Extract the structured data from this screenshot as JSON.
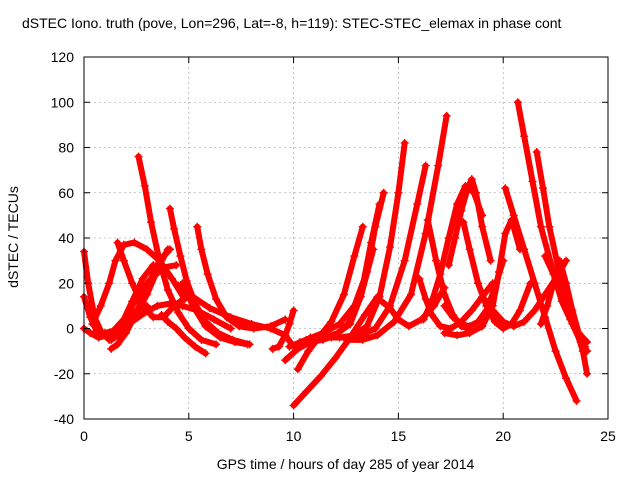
{
  "chart_data": {
    "type": "scatter",
    "title": "dSTEC Iono. truth (pove, Lon=296, Lat=-8, h=119): STEC-STEC_elemax in phase cont",
    "xlabel": "GPS time / hours of day 285 of year 2014",
    "ylabel": "dSTEC  / TECUs",
    "xlim": [
      0,
      25
    ],
    "ylim": [
      -40,
      120
    ],
    "xticks": [
      "0",
      "5",
      "10",
      "15",
      "20",
      "25"
    ],
    "yticks": [
      "-40",
      "-20",
      "0",
      "20",
      "40",
      "60",
      "80",
      "100",
      "120"
    ],
    "grid": true,
    "marker": "+",
    "color": "#ff0000",
    "series": [
      {
        "x": [
          0.0,
          0.2,
          0.5,
          0.9,
          1.3,
          1.8,
          2.4,
          3.0,
          3.6,
          4.0
        ],
        "y": [
          34,
          20,
          5,
          -3,
          -5,
          -2,
          5,
          15,
          28,
          35
        ]
      },
      {
        "x": [
          0.0,
          0.3,
          0.6,
          1.0,
          1.4,
          1.8,
          2.3,
          2.8,
          3.3
        ],
        "y": [
          14,
          5,
          -1,
          -3,
          -3,
          2,
          12,
          22,
          28
        ]
      },
      {
        "x": [
          0.0,
          0.3,
          0.7,
          1.1,
          1.5,
          2.0,
          2.5,
          3.0
        ],
        "y": [
          0,
          -2,
          -4,
          -3,
          -1,
          3,
          8,
          10
        ]
      },
      {
        "x": [
          0.6,
          1.0,
          1.4,
          1.9,
          2.5,
          3.1,
          3.8,
          4.4
        ],
        "y": [
          -3,
          -2,
          -1,
          4,
          13,
          21,
          27,
          28
        ]
      },
      {
        "x": [
          0.4,
          0.8,
          1.2,
          1.5,
          1.9,
          2.4,
          3.0,
          3.6,
          4.2,
          4.8
        ],
        "y": [
          2,
          10,
          20,
          30,
          37,
          38,
          35,
          30,
          22,
          13
        ]
      },
      {
        "x": [
          1.3,
          1.6,
          2.0,
          2.5,
          3.0,
          3.6,
          4.1
        ],
        "y": [
          -9,
          -7,
          -2,
          7,
          18,
          30,
          35
        ]
      },
      {
        "x": [
          1.6,
          1.9,
          2.3,
          2.8,
          3.3,
          3.8,
          4.3,
          4.9
        ],
        "y": [
          38,
          30,
          20,
          10,
          5,
          5,
          10,
          14
        ]
      },
      {
        "x": [
          1.2,
          1.7,
          2.3,
          2.9,
          3.5,
          4.1,
          4.7,
          5.4,
          6.2,
          7.0
        ],
        "y": [
          -5,
          -1,
          3,
          7,
          10,
          11,
          10,
          8,
          4,
          0
        ]
      },
      {
        "x": [
          2.6,
          2.9,
          3.2,
          3.6,
          4.0,
          4.5,
          5.0,
          5.6,
          6.3
        ],
        "y": [
          76,
          63,
          47,
          30,
          17,
          7,
          0,
          -5,
          -7
        ]
      },
      {
        "x": [
          4.1,
          4.3,
          4.6,
          4.9,
          5.3,
          5.8,
          6.4,
          7.1,
          7.9
        ],
        "y": [
          53,
          44,
          32,
          21,
          11,
          3,
          -2,
          -5,
          -7
        ]
      },
      {
        "x": [
          3.7,
          4.0,
          4.4,
          4.8,
          5.3,
          5.8
        ],
        "y": [
          6,
          3,
          0,
          -4,
          -8,
          -11
        ]
      },
      {
        "x": [
          4.7,
          5.2,
          5.8,
          6.5,
          7.2,
          7.8
        ],
        "y": [
          20,
          10,
          1,
          -4,
          -6,
          -7
        ]
      },
      {
        "x": [
          5.4,
          5.6,
          5.9,
          6.3,
          6.8,
          7.4,
          8.1,
          8.9,
          9.6
        ],
        "y": [
          45,
          35,
          24,
          13,
          5,
          1,
          0,
          1,
          4
        ]
      },
      {
        "x": [
          4.5,
          5.2,
          6.0,
          7.0,
          8.0,
          8.9,
          9.6,
          10.0
        ],
        "y": [
          19,
          14,
          9,
          5,
          2,
          0,
          -3,
          -8
        ]
      },
      {
        "x": [
          9.0,
          9.3,
          9.6,
          9.8,
          10.0
        ],
        "y": [
          -9,
          -8,
          -3,
          2,
          8
        ]
      },
      {
        "x": [
          10.0,
          10.6,
          11.3,
          12.0,
          12.7,
          13.4,
          14.0
        ],
        "y": [
          -34,
          -28,
          -21,
          -13,
          -4,
          6,
          14
        ]
      },
      {
        "x": [
          10.2,
          10.7,
          11.2,
          11.8,
          12.4,
          12.9,
          13.3
        ],
        "y": [
          -18,
          -10,
          -4,
          3,
          15,
          32,
          45
        ]
      },
      {
        "x": [
          9.6,
          10.2,
          10.8,
          11.4,
          12.0,
          12.6,
          13.2,
          13.8
        ],
        "y": [
          -14,
          -9,
          -6,
          -5,
          -3,
          2,
          14,
          35
        ]
      },
      {
        "x": [
          10.3,
          10.9,
          11.5,
          12.1,
          12.7,
          13.2,
          13.7,
          14.1
        ],
        "y": [
          -6,
          -5,
          -4,
          -2,
          2,
          14,
          38,
          55
        ]
      },
      {
        "x": [
          9.8,
          10.6,
          11.4,
          12.2,
          12.9,
          13.5,
          13.9,
          14.3
        ],
        "y": [
          -8,
          -5,
          -2,
          2,
          10,
          25,
          45,
          60
        ]
      },
      {
        "x": [
          10.8,
          11.5,
          12.2,
          12.9,
          13.5,
          14.1,
          14.6,
          15.0,
          15.3
        ],
        "y": [
          -4,
          -4,
          -4,
          -3,
          1,
          14,
          36,
          60,
          82
        ]
      },
      {
        "x": [
          11.8,
          12.5,
          13.2,
          13.9,
          14.6,
          15.3,
          15.9,
          16.3
        ],
        "y": [
          -4,
          -4,
          -3,
          0,
          10,
          30,
          55,
          72
        ]
      },
      {
        "x": [
          12.5,
          13.3,
          14.0,
          14.8,
          15.6,
          16.3,
          16.9,
          17.3
        ],
        "y": [
          -5,
          -5,
          -3,
          3,
          15,
          42,
          72,
          94
        ]
      },
      {
        "x": [
          14.2,
          14.6,
          15.0,
          15.5,
          16.1,
          16.7,
          17.2
        ],
        "y": [
          12,
          9,
          4,
          1,
          4,
          10,
          18
        ]
      },
      {
        "x": [
          16.4,
          16.8,
          17.2,
          17.6,
          18.0,
          18.3
        ],
        "y": [
          48,
          30,
          15,
          6,
          1,
          0
        ]
      },
      {
        "x": [
          16.0,
          16.3,
          16.6,
          17.0,
          17.5,
          18.0,
          18.5,
          19.0,
          19.5
        ],
        "y": [
          22,
          13,
          6,
          1,
          0,
          3,
          8,
          14,
          20
        ]
      },
      {
        "x": [
          16.2,
          16.6,
          17.0,
          17.4,
          17.8,
          18.2,
          18.6,
          19.0
        ],
        "y": [
          4,
          12,
          24,
          40,
          55,
          63,
          60,
          50
        ]
      },
      {
        "x": [
          17.2,
          17.6,
          18.0,
          18.4,
          18.8,
          19.2,
          19.6,
          20.0
        ],
        "y": [
          10,
          5,
          2,
          1,
          3,
          8,
          18,
          30
        ]
      },
      {
        "x": [
          17.4,
          17.7,
          18.0,
          18.3,
          18.5,
          18.7,
          19.0,
          19.4
        ],
        "y": [
          28,
          40,
          52,
          62,
          66,
          60,
          45,
          30
        ]
      },
      {
        "x": [
          18.1,
          18.4,
          18.8,
          19.2,
          19.6,
          20.0,
          20.4,
          20.8,
          21.3
        ],
        "y": [
          47,
          35,
          20,
          10,
          3,
          0,
          2,
          8,
          20
        ]
      },
      {
        "x": [
          17.2,
          17.8,
          18.4,
          19.0,
          19.5,
          19.8,
          20.1,
          20.4,
          20.8
        ],
        "y": [
          -2,
          -3,
          -2,
          1,
          10,
          25,
          42,
          48,
          35
        ]
      },
      {
        "x": [
          19.1,
          19.5,
          20.0,
          20.5,
          21.0,
          21.5,
          22.0,
          22.5,
          23.0
        ],
        "y": [
          13,
          8,
          3,
          1,
          3,
          8,
          15,
          22,
          30
        ]
      },
      {
        "x": [
          20.1,
          20.5,
          21.0,
          21.5,
          22.0,
          22.5,
          23.0,
          23.5
        ],
        "y": [
          62,
          50,
          35,
          20,
          5,
          -10,
          -22,
          -32
        ]
      },
      {
        "x": [
          20.7,
          21.0,
          21.4,
          21.8,
          22.3,
          22.8,
          23.3,
          23.7,
          24.0
        ],
        "y": [
          100,
          85,
          65,
          45,
          28,
          12,
          2,
          -6,
          -10
        ]
      },
      {
        "x": [
          21.6,
          21.9,
          22.2,
          22.6,
          23.0,
          23.4,
          23.8,
          24.0
        ],
        "y": [
          78,
          62,
          45,
          28,
          12,
          2,
          -10,
          -20
        ]
      },
      {
        "x": [
          21.8,
          22.1,
          22.4,
          22.7,
          23.0,
          23.3,
          23.6,
          23.9
        ],
        "y": [
          2,
          10,
          20,
          30,
          20,
          8,
          -2,
          -8
        ]
      },
      {
        "x": [
          22.0,
          22.4,
          22.8,
          23.2,
          23.6,
          24.0
        ],
        "y": [
          32,
          24,
          12,
          4,
          -2,
          -6
        ]
      }
    ]
  }
}
